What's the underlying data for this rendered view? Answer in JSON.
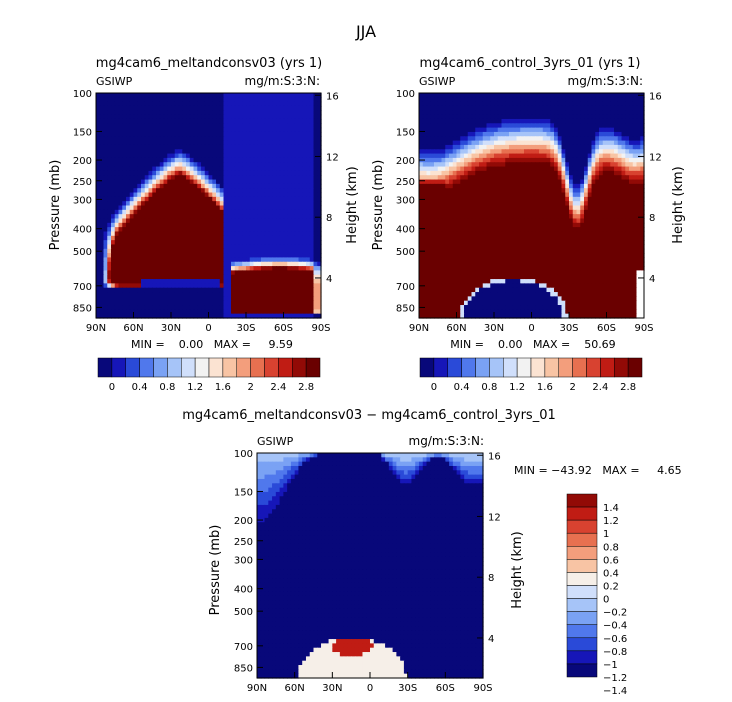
{
  "figure": {
    "title": "JJA"
  },
  "colors": {
    "cmap_abs": [
      "#08087a",
      "#1616b8",
      "#2a4ad8",
      "#5078ec",
      "#7aa2f4",
      "#a6c4f8",
      "#d0dffb",
      "#f2f2f2",
      "#fbe3d2",
      "#f8c4a4",
      "#f39e7c",
      "#e77050",
      "#d84230",
      "#c01c14",
      "#920a06",
      "#6a0000"
    ],
    "cmap_diff": [
      "#08087a",
      "#1616b8",
      "#2a4ad8",
      "#5078ec",
      "#7aa2f4",
      "#a6c4f8",
      "#d0dffb",
      "#f6efe8",
      "#f8c4a4",
      "#f39e7c",
      "#e77050",
      "#d84230",
      "#c01c14",
      "#920a06"
    ]
  },
  "chart_data": [
    {
      "type": "heatmap",
      "title": "mg4cam6_meltandconsv03 (yrs 1)",
      "corner_left": "GSIWP",
      "corner_right": "mg/m:S:3:N:",
      "ylabel": "Pressure (mb)",
      "ylabel_right": "Height (km)",
      "x_ticks": [
        "90N",
        "60N",
        "30N",
        "0",
        "30S",
        "60S",
        "90S"
      ],
      "y_ticks": [
        "100",
        "150",
        "200",
        "250",
        "300",
        "400",
        "500",
        "700",
        "850"
      ],
      "y_ticks_right": [
        "16",
        "12",
        "8",
        "4"
      ],
      "stats": "MIN =    0.00   MAX =     9.59",
      "xlim": [
        90,
        -90
      ],
      "ylim": [
        100,
        900
      ]
    },
    {
      "type": "heatmap",
      "title": "mg4cam6_control_3yrs_01 (yrs 1)",
      "corner_left": "GSIWP",
      "corner_right": "mg/m:S:3:N:",
      "ylabel": "Pressure (mb)",
      "ylabel_right": "Height (km)",
      "x_ticks": [
        "90N",
        "60N",
        "30N",
        "0",
        "30S",
        "60S",
        "90S"
      ],
      "y_ticks": [
        "100",
        "150",
        "200",
        "250",
        "300",
        "400",
        "500",
        "700",
        "850"
      ],
      "y_ticks_right": [
        "16",
        "12",
        "8",
        "4"
      ],
      "stats": "MIN =    0.00   MAX =    50.69",
      "xlim": [
        90,
        -90
      ],
      "ylim": [
        100,
        900
      ]
    },
    {
      "type": "heatmap",
      "title": "mg4cam6_meltandconsv03 − mg4cam6_control_3yrs_01",
      "corner_left": "GSIWP",
      "corner_right": "mg/m:S:3:N:",
      "ylabel": "Pressure (mb)",
      "ylabel_right": "Height (km)",
      "x_ticks": [
        "90N",
        "60N",
        "30N",
        "0",
        "30S",
        "60S",
        "90S"
      ],
      "y_ticks": [
        "100",
        "150",
        "200",
        "250",
        "300",
        "400",
        "500",
        "700",
        "850"
      ],
      "y_ticks_right": [
        "16",
        "12",
        "8",
        "4"
      ],
      "stats": "MIN = −43.92   MAX =     4.65",
      "xlim": [
        90,
        -90
      ],
      "ylim": [
        100,
        900
      ]
    }
  ],
  "colorbars": {
    "abs_labels": [
      "0",
      "0.4",
      "0.8",
      "1.2",
      "1.6",
      "2",
      "2.4",
      "2.8"
    ],
    "diff_labels": [
      "1.4",
      "1.2",
      "1",
      "0.8",
      "0.6",
      "0.4",
      "0.2",
      "0",
      "−0.2",
      "−0.4",
      "−0.6",
      "−0.8",
      "−1",
      "−1.2",
      "−1.4"
    ]
  }
}
